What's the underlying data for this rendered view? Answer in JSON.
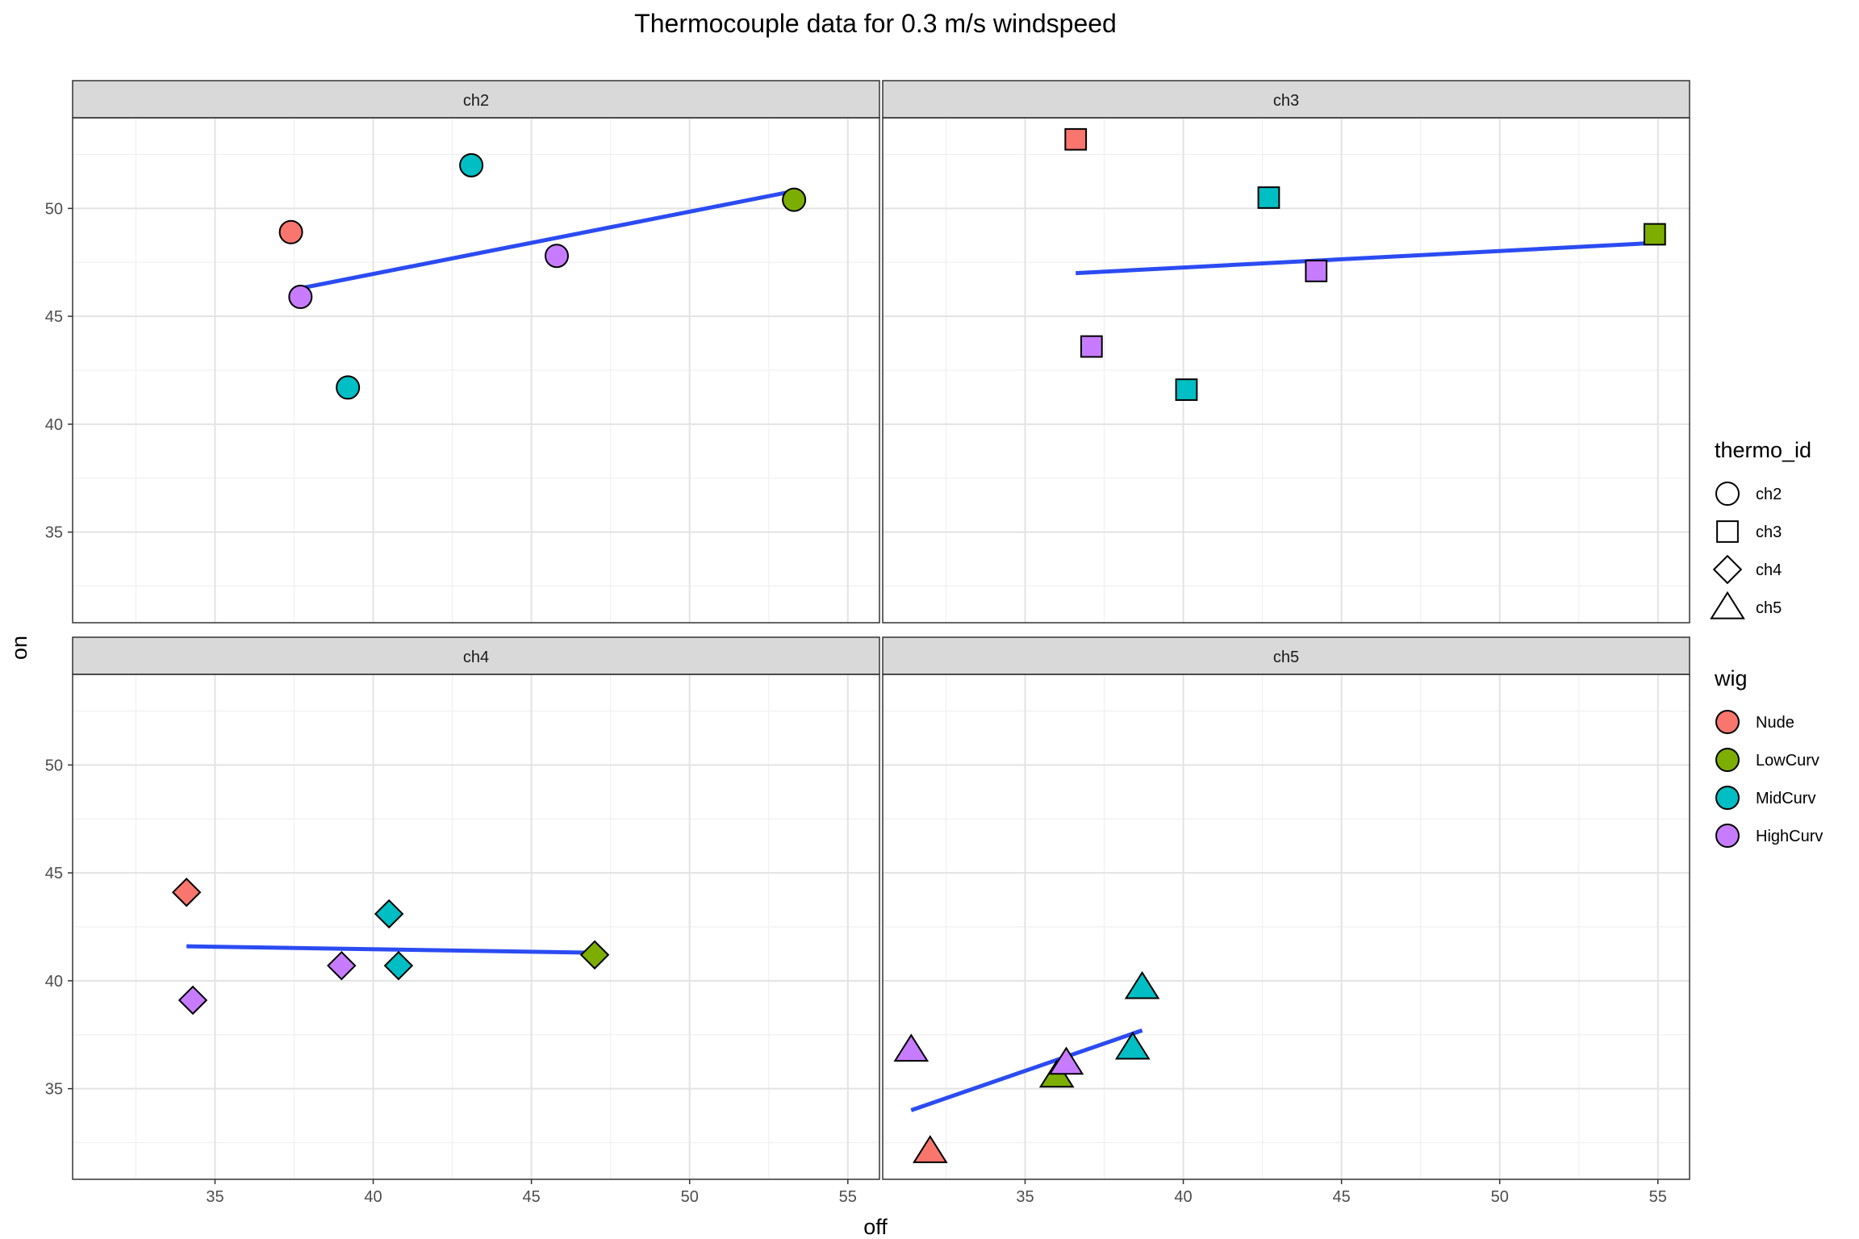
{
  "chart_data": {
    "type": "scatter",
    "title": "Thermocouple data for 0.3 m/s windspeed",
    "xlabel": "off",
    "ylabel": "on",
    "xlim": [
      30.5,
      56
    ],
    "ylim": [
      30.8,
      54.2
    ],
    "x_ticks": [
      35,
      40,
      45,
      50,
      55
    ],
    "y_ticks": [
      35,
      40,
      45,
      50
    ],
    "grid": true,
    "trend_line_color": "#2B4BF2",
    "facets": [
      {
        "name": "ch2",
        "shape": "circle",
        "points": [
          {
            "wig": "Nude",
            "x": 37.4,
            "y": 48.9
          },
          {
            "wig": "LowCurv",
            "x": 53.3,
            "y": 50.4
          },
          {
            "wig": "MidCurv",
            "x": 43.1,
            "y": 52.0
          },
          {
            "wig": "MidCurv",
            "x": 39.2,
            "y": 41.7
          },
          {
            "wig": "HighCurv",
            "x": 37.7,
            "y": 45.9
          },
          {
            "wig": "HighCurv",
            "x": 45.8,
            "y": 47.8
          }
        ],
        "trend": [
          [
            37.7,
            46.3
          ],
          [
            53.3,
            50.8
          ]
        ]
      },
      {
        "name": "ch3",
        "shape": "square",
        "points": [
          {
            "wig": "Nude",
            "x": 36.6,
            "y": 53.2
          },
          {
            "wig": "LowCurv",
            "x": 54.9,
            "y": 48.8
          },
          {
            "wig": "MidCurv",
            "x": 42.7,
            "y": 50.5
          },
          {
            "wig": "MidCurv",
            "x": 40.1,
            "y": 41.6
          },
          {
            "wig": "HighCurv",
            "x": 37.1,
            "y": 43.6
          },
          {
            "wig": "HighCurv",
            "x": 44.2,
            "y": 47.1
          }
        ],
        "trend": [
          [
            36.6,
            47.0
          ],
          [
            54.9,
            48.4
          ]
        ]
      },
      {
        "name": "ch4",
        "shape": "diamond",
        "points": [
          {
            "wig": "Nude",
            "x": 34.1,
            "y": 44.1
          },
          {
            "wig": "LowCurv",
            "x": 47.0,
            "y": 41.2
          },
          {
            "wig": "MidCurv",
            "x": 40.5,
            "y": 43.1
          },
          {
            "wig": "MidCurv",
            "x": 40.8,
            "y": 40.7
          },
          {
            "wig": "HighCurv",
            "x": 39.0,
            "y": 40.7
          },
          {
            "wig": "HighCurv",
            "x": 34.3,
            "y": 39.1
          }
        ],
        "trend": [
          [
            34.1,
            41.6
          ],
          [
            47.0,
            41.3
          ]
        ]
      },
      {
        "name": "ch5",
        "shape": "triangle",
        "points": [
          {
            "wig": "Nude",
            "x": 32.0,
            "y": 32.1
          },
          {
            "wig": "LowCurv",
            "x": 36.0,
            "y": 35.6
          },
          {
            "wig": "MidCurv",
            "x": 38.7,
            "y": 39.7
          },
          {
            "wig": "MidCurv",
            "x": 38.4,
            "y": 36.9
          },
          {
            "wig": "HighCurv",
            "x": 31.4,
            "y": 36.8
          },
          {
            "wig": "HighCurv",
            "x": 36.3,
            "y": 36.2
          }
        ],
        "trend": [
          [
            31.4,
            34.0
          ],
          [
            38.7,
            37.7
          ]
        ]
      }
    ],
    "legends": [
      {
        "title": "thermo_id",
        "entries": [
          {
            "label": "ch2",
            "shape": "circle"
          },
          {
            "label": "ch3",
            "shape": "square"
          },
          {
            "label": "ch4",
            "shape": "diamond"
          },
          {
            "label": "ch5",
            "shape": "triangle"
          }
        ]
      },
      {
        "title": "wig",
        "entries": [
          {
            "label": "Nude",
            "color": "#F8766D"
          },
          {
            "label": "LowCurv",
            "color": "#7CAE00"
          },
          {
            "label": "MidCurv",
            "color": "#00BFC4"
          },
          {
            "label": "HighCurv",
            "color": "#C77CFF"
          }
        ]
      }
    ],
    "legend_position": "right"
  }
}
